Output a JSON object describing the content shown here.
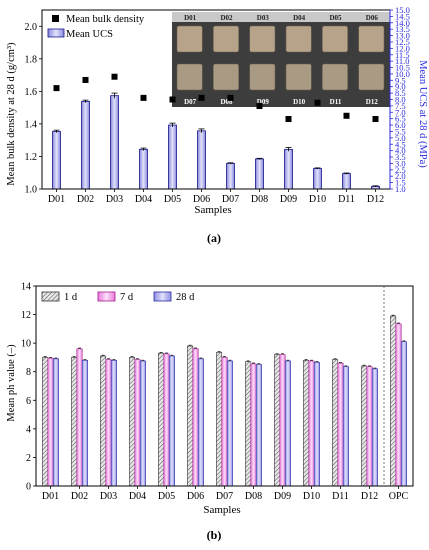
{
  "figure": {
    "panel_a_label": "(a)",
    "panel_b_label": "(b)"
  },
  "chart_data": [
    {
      "type": "bar",
      "panel": "a",
      "categories": [
        "D01",
        "D02",
        "D03",
        "D04",
        "D05",
        "D06",
        "D07",
        "D08",
        "D09",
        "D10",
        "D11",
        "D12"
      ],
      "series": [
        {
          "name": "Mean UCS",
          "axis": "right",
          "values": [
            5.5,
            7.85,
            8.3,
            4.1,
            6.0,
            5.55,
            3.0,
            3.35,
            4.1,
            2.6,
            2.2,
            1.2
          ],
          "errors": [
            0.1,
            0.1,
            0.2,
            0.1,
            0.15,
            0.15,
            0.05,
            0.05,
            0.15,
            0.05,
            0.05,
            0.05
          ],
          "color": "#c6c6f0"
        },
        {
          "name": "Mean bulk density",
          "axis": "left",
          "type": "scatter",
          "values": [
            1.62,
            1.67,
            1.69,
            1.56,
            1.55,
            1.56,
            1.56,
            1.51,
            1.43,
            1.53,
            1.45,
            1.43
          ],
          "color": "#000000"
        }
      ],
      "xlabel": "Samples",
      "ylabel": "Mean bulk density at 28 d (g/cm³)",
      "y2label": "Mean UCS at 28 d (MPa)",
      "ylim": [
        1.0,
        2.1
      ],
      "y2lim": [
        1.0,
        15.0
      ],
      "yticks": [
        "1.0",
        "1.2",
        "1.4",
        "1.6",
        "1.8",
        "2.0"
      ],
      "y2ticks": [
        "1.0",
        "1.5",
        "2.0",
        "2.5",
        "3.0",
        "3.5",
        "4.0",
        "4.5",
        "5.0",
        "5.5",
        "6.0",
        "6.5",
        "7.0",
        "7.5",
        "8.0",
        "8.5",
        "9.0",
        "9.5",
        "10.0",
        "10.5",
        "11.0",
        "11.5",
        "12.0",
        "12.5",
        "13.0",
        "13.5",
        "14.0",
        "14.5",
        "15.0"
      ],
      "legend": "top-left",
      "inset_photo": {
        "labels_top": [
          "D01",
          "D02",
          "D03",
          "D04",
          "D05",
          "D06"
        ],
        "labels_bottom": [
          "D07",
          "D08",
          "D09",
          "D10",
          "D11",
          "D12"
        ]
      }
    },
    {
      "type": "bar",
      "panel": "b",
      "categories": [
        "D01",
        "D02",
        "D03",
        "D04",
        "D05",
        "D06",
        "D07",
        "D08",
        "D09",
        "D10",
        "D11",
        "D12",
        "OPC"
      ],
      "series": [
        {
          "name": "1 d",
          "values": [
            9.0,
            9.0,
            9.1,
            9.0,
            9.3,
            9.8,
            9.35,
            8.7,
            9.2,
            8.8,
            8.85,
            8.4,
            11.9
          ],
          "color": "#d9d9d9",
          "pattern": "hatch"
        },
        {
          "name": "7 d",
          "values": [
            8.95,
            9.6,
            8.85,
            8.85,
            9.25,
            9.6,
            9.0,
            8.55,
            9.2,
            8.75,
            8.6,
            8.35,
            11.35
          ],
          "color": "#f4a7ec"
        },
        {
          "name": "28 d",
          "values": [
            8.9,
            8.8,
            8.8,
            8.75,
            9.1,
            8.9,
            8.75,
            8.5,
            8.75,
            8.65,
            8.35,
            8.2,
            10.1
          ],
          "color": "#b7b7f2"
        }
      ],
      "xlabel": "Samples",
      "ylabel": "Mean ph value (–)",
      "ylim": [
        0,
        14
      ],
      "yticks": [
        "0",
        "2",
        "4",
        "6",
        "8",
        "10",
        "12",
        "14"
      ],
      "legend": "top-left"
    }
  ]
}
